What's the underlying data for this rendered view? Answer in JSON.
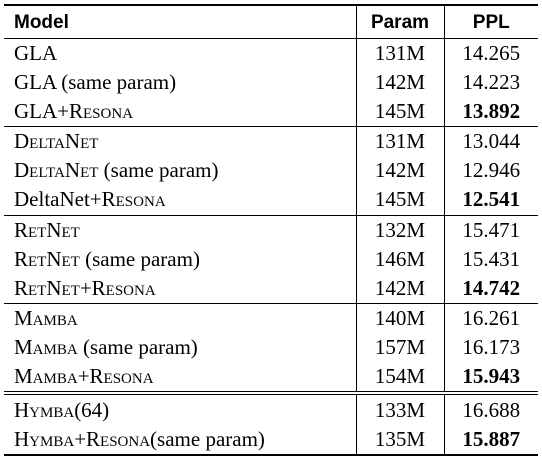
{
  "header": {
    "model": "Model",
    "param": "Param",
    "ppl": "PPL"
  },
  "groups": [
    [
      {
        "model": "GLA",
        "param": "131M",
        "ppl": "14.265"
      },
      {
        "model": "GLA (same param)",
        "param": "142M",
        "ppl": "14.223"
      },
      {
        "model_base": "GLA",
        "model_suffix": "+Resona",
        "param": "145M",
        "ppl": "13.892",
        "best": true
      }
    ],
    [
      {
        "model_sc": "DeltaNet",
        "param": "131M",
        "ppl": "13.044"
      },
      {
        "model_sc": "DeltaNet",
        "model_tail": " (same param)",
        "param": "142M",
        "ppl": "12.946"
      },
      {
        "model_base": "DeltaNet",
        "model_suffix": "+Resona",
        "param": "145M",
        "ppl": "12.541",
        "best": true
      }
    ],
    [
      {
        "model_sc": "RetNet",
        "param": "132M",
        "ppl": "15.471"
      },
      {
        "model_sc": "RetNet",
        "model_tail": " (same param)",
        "param": "146M",
        "ppl": "15.431"
      },
      {
        "model_sc": "RetNet",
        "model_suffix": "+Resona",
        "param": "142M",
        "ppl": "14.742",
        "best": true
      }
    ],
    [
      {
        "model_sc": "Mamba",
        "param": "140M",
        "ppl": "16.261"
      },
      {
        "model_sc": "Mamba",
        "model_tail": " (same param)",
        "param": "157M",
        "ppl": "16.173"
      },
      {
        "model_sc": "Mamba",
        "model_suffix": "+Resona",
        "param": "154M",
        "ppl": "15.943",
        "best": true
      }
    ],
    [
      {
        "model_sc": "Hymba",
        "model_tail": "(64)",
        "param": "133M",
        "ppl": "16.688"
      },
      {
        "model_sc": "Hymba",
        "model_suffix": "+Resona",
        "model_tail": "(same param)",
        "param": "135M",
        "ppl": "15.887",
        "best": true
      }
    ]
  ]
}
